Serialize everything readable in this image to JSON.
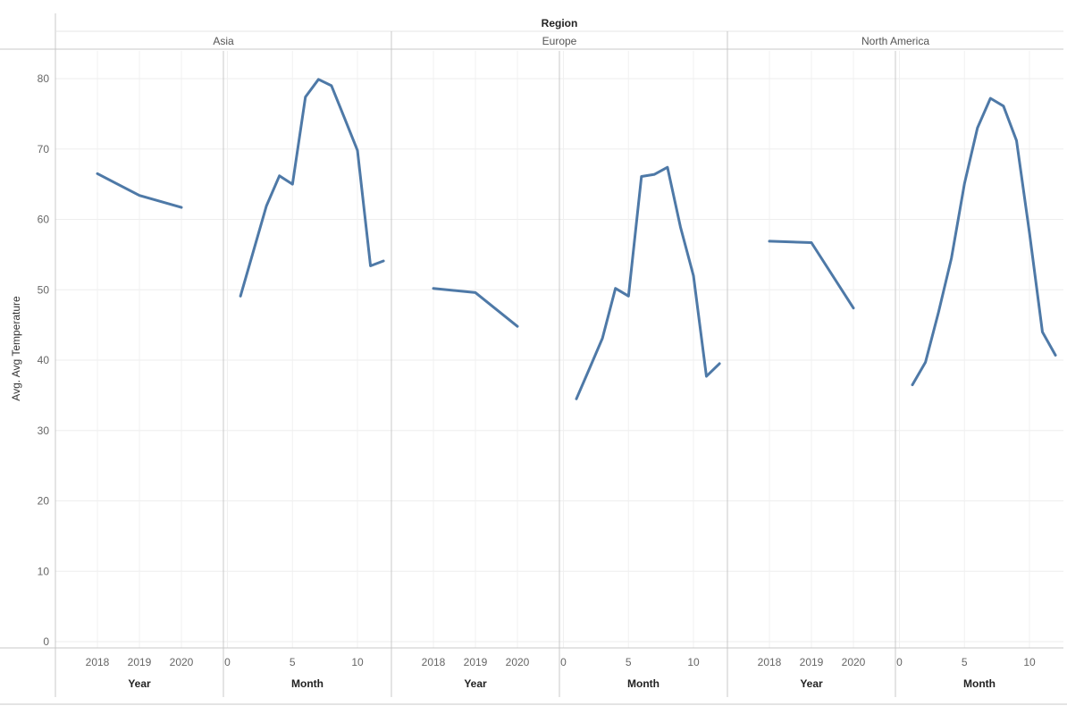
{
  "chart_data": {
    "type": "line",
    "column_header_title": "Region",
    "ylabel": "Avg. Avg Temperature",
    "ylim": [
      0,
      84
    ],
    "yticks": [
      0,
      10,
      20,
      30,
      40,
      50,
      60,
      70,
      80
    ],
    "grid": true,
    "regions": [
      {
        "name": "Asia",
        "year": {
          "axis_label": "Year",
          "x": [
            2018,
            2019,
            2020
          ],
          "y": [
            66.5,
            63.4,
            61.7
          ],
          "ticks": [
            "2018",
            "2019",
            "2020"
          ]
        },
        "month": {
          "axis_label": "Month",
          "x": [
            1,
            2,
            3,
            4,
            5,
            6,
            7,
            8,
            9,
            10,
            11,
            12
          ],
          "y": [
            49.1,
            55.5,
            61.9,
            66.2,
            65.0,
            77.4,
            79.9,
            79.0,
            74.4,
            69.8,
            53.4,
            54.1
          ],
          "ticks": [
            "0",
            "5",
            "10"
          ]
        }
      },
      {
        "name": "Europe",
        "year": {
          "axis_label": "Year",
          "x": [
            2018,
            2019,
            2020
          ],
          "y": [
            50.2,
            49.6,
            44.8
          ],
          "ticks": [
            "2018",
            "2019",
            "2020"
          ]
        },
        "month": {
          "axis_label": "Month",
          "x": [
            1,
            2,
            3,
            4,
            5,
            6,
            7,
            8,
            9,
            10,
            11,
            12
          ],
          "y": [
            34.5,
            38.8,
            43.1,
            50.2,
            49.1,
            66.1,
            66.4,
            67.4,
            58.9,
            52.0,
            37.7,
            39.5
          ],
          "ticks": [
            "0",
            "5",
            "10"
          ]
        }
      },
      {
        "name": "North America",
        "year": {
          "axis_label": "Year",
          "x": [
            2018,
            2019,
            2020
          ],
          "y": [
            56.9,
            56.7,
            47.4
          ],
          "ticks": [
            "2018",
            "2019",
            "2020"
          ]
        },
        "month": {
          "axis_label": "Month",
          "x": [
            1,
            2,
            3,
            4,
            5,
            6,
            7,
            8,
            9,
            10,
            11,
            12
          ],
          "y": [
            36.5,
            39.7,
            46.8,
            54.5,
            65.1,
            73.0,
            77.2,
            76.1,
            71.2,
            58.1,
            44.0,
            40.7
          ],
          "ticks": [
            "0",
            "5",
            "10"
          ]
        }
      }
    ],
    "line_color": "#4e79a7"
  }
}
